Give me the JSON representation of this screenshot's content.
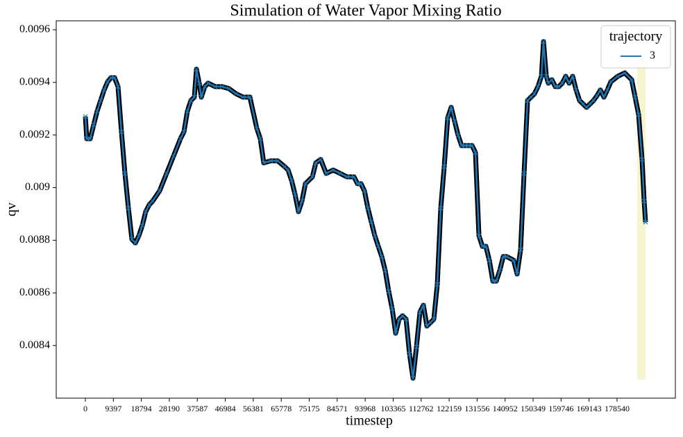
{
  "chart_data": {
    "type": "line",
    "title": "Simulation of Water Vapor Mixing Ratio",
    "x_label": "timestep",
    "y_label": "qv",
    "legend_title": "trajectory",
    "legend_position": "upper right",
    "x": [
      0,
      466,
      1632,
      2797,
      3963,
      5128,
      6294,
      7459,
      8625,
      9790,
      10956,
      12121,
      13287,
      14452,
      15618,
      16783,
      17949,
      19114,
      20280,
      21445,
      22611,
      24942,
      27273,
      29604,
      31935,
      33100,
      34266,
      35431,
      36597,
      37296,
      38228,
      38928,
      40093,
      41259,
      43590,
      45921,
      48252,
      50583,
      52914,
      55245,
      57576,
      58741,
      59907,
      62238,
      64569,
      66900,
      68065,
      69231,
      70396,
      71562,
      72727,
      73893,
      76224,
      77389,
      79021,
      80886,
      83217,
      85548,
      87879,
      90210,
      91375,
      92541,
      93706,
      94872,
      96037,
      97203,
      98368,
      99534,
      100699,
      101865,
      103030,
      104196,
      105361,
      106527,
      107692,
      108858,
      110023,
      111189,
      112354,
      113520,
      114685,
      115851,
      117016,
      118182,
      119347,
      120513,
      121678,
      122844,
      124009,
      125175,
      126340,
      127506,
      128671,
      129837,
      131002,
      132168,
      133333,
      134499,
      135664,
      136830,
      137995,
      139161,
      140326,
      141492,
      143823,
      144988,
      146154,
      147319,
      148485,
      149650,
      150816,
      151981,
      153147,
      153846,
      154778,
      155478,
      156643,
      157809,
      158974,
      160140,
      161305,
      162471,
      163636,
      164802,
      165967,
      167133,
      168298,
      169464,
      170629,
      171795,
      172960,
      174126,
      175291,
      176457,
      178788,
      181119,
      183450,
      184615,
      185781,
      186946,
      187646,
      188112
    ],
    "series": [
      {
        "name": "3",
        "color": "#1f77b4",
        "outline_color": "#000000",
        "values": [
          0.00927,
          0.009186,
          0.009186,
          0.009239,
          0.009291,
          0.009331,
          0.009371,
          0.009402,
          0.009418,
          0.009418,
          0.009384,
          0.009212,
          0.009054,
          0.008922,
          0.008804,
          0.00879,
          0.008817,
          0.008856,
          0.008909,
          0.008935,
          0.008949,
          0.008988,
          0.009054,
          0.00912,
          0.009186,
          0.009212,
          0.009291,
          0.009331,
          0.009344,
          0.00945,
          0.009397,
          0.009344,
          0.009384,
          0.009397,
          0.009384,
          0.009384,
          0.009376,
          0.009357,
          0.009344,
          0.009344,
          0.009225,
          0.009186,
          0.009094,
          0.009102,
          0.009102,
          0.00908,
          0.009067,
          0.009028,
          0.008975,
          0.008909,
          0.008949,
          0.009015,
          0.009041,
          0.009094,
          0.009107,
          0.009054,
          0.009067,
          0.009054,
          0.009041,
          0.009041,
          0.009015,
          0.009015,
          0.008988,
          0.008922,
          0.008869,
          0.008817,
          0.008777,
          0.008738,
          0.008685,
          0.008606,
          0.00854,
          0.008447,
          0.0085,
          0.008513,
          0.0085,
          0.008368,
          0.008276,
          0.008395,
          0.008527,
          0.008553,
          0.008474,
          0.008487,
          0.0085,
          0.008632,
          0.008922,
          0.00908,
          0.009265,
          0.009305,
          0.009252,
          0.009199,
          0.00916,
          0.00916,
          0.00916,
          0.00916,
          0.009133,
          0.008817,
          0.008777,
          0.008777,
          0.008724,
          0.008645,
          0.008645,
          0.008685,
          0.008738,
          0.008738,
          0.008724,
          0.008672,
          0.008764,
          0.009054,
          0.009331,
          0.009344,
          0.009357,
          0.009384,
          0.009423,
          0.009555,
          0.009423,
          0.009397,
          0.00941,
          0.009384,
          0.009384,
          0.009397,
          0.009423,
          0.009397,
          0.009423,
          0.009371,
          0.009331,
          0.009318,
          0.009305,
          0.009318,
          0.009331,
          0.009349,
          0.009371,
          0.009344,
          0.009371,
          0.009402,
          0.009423,
          0.009436,
          0.00941,
          0.009344,
          0.009278,
          0.009107,
          0.008949,
          0.008869
        ]
      }
    ],
    "highlight": {
      "x": [
        185300,
        188100
      ],
      "y": [
        0.008271,
        0.009481
      ],
      "color": "#f7f5cf"
    },
    "xlim": [
      -9790,
      198130
    ],
    "ylim": [
      0.0082,
      0.009634
    ],
    "xticks": [
      0,
      9397,
      18794,
      28190,
      37587,
      46984,
      56381,
      65778,
      75175,
      84571,
      93968,
      103365,
      112762,
      122159,
      131556,
      140952,
      150349,
      159746,
      169143,
      178540
    ],
    "yticks": [
      0.0084,
      0.0086,
      0.0088,
      0.009,
      0.0092,
      0.0094,
      0.0096
    ],
    "grid": false
  }
}
